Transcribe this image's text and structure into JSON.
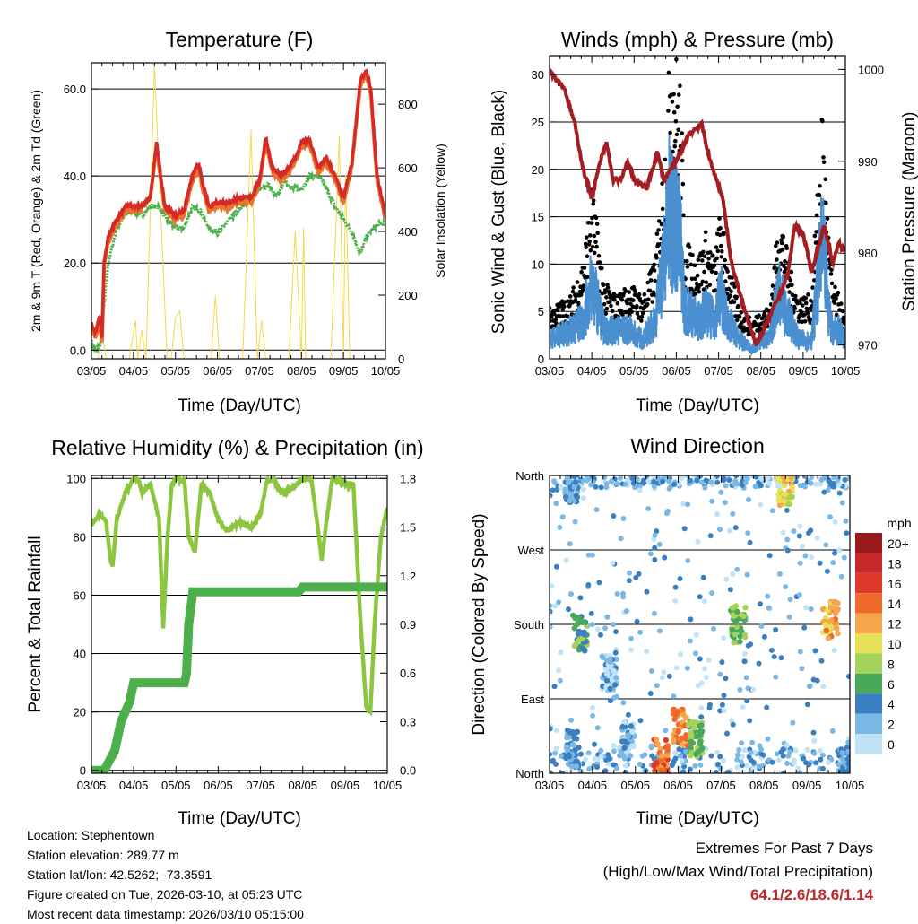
{
  "station_info": {
    "location": "Location: Stephentown",
    "elevation": "Station elevation: 289.77 m",
    "latlon": "Station lat/lon: 42.5262; -73.3591",
    "created": "Figure created on Tue, 2026-03-10, at 05:23 UTC",
    "recent": "Most recent data timestamp: 2026/03/10 05:15:00"
  },
  "extremes": {
    "title": "Extremes For Past 7 Days",
    "subtitle": "(High/Low/Max Wind/Total Precipitation)",
    "values": "64.1/2.6/18.6/1.14"
  },
  "colors": {
    "temp2m": "#e8732a",
    "temp9m": "#d62a27",
    "dewpoint": "#4daf4a",
    "solar": "#f5d84a",
    "wind": "#4a8fcf",
    "gust": "#000000",
    "pressure": "#a31e22",
    "rh": "#8cc63f",
    "precip": "#4daf4a"
  },
  "chart_data": [
    {
      "type": "line",
      "title": "Temperature (F)",
      "xlabel": "Time (Day/UTC)",
      "ylabel": "2m & 9m T (Red, Orange) & 2m Td (Green)",
      "y2label": "Solar Insolation (Yellow)",
      "x_ticks": [
        "03/05",
        "04/05",
        "05/05",
        "06/05",
        "07/05",
        "08/05",
        "09/05",
        "10/05"
      ],
      "xlim": [
        0,
        7
      ],
      "ylim": [
        -2,
        66
      ],
      "y_ticks": [
        "0.0",
        "20.0",
        "40.0",
        "60.0"
      ],
      "y_tick_values": [
        0,
        20,
        40,
        60
      ],
      "y2lim": [
        0,
        930
      ],
      "y2_ticks": [
        "0",
        "200",
        "400",
        "600",
        "800"
      ],
      "y2_tick_values": [
        0,
        200,
        400,
        600,
        800
      ],
      "grid": true,
      "series": [
        {
          "name": "9m T",
          "x": [
            0,
            0.1,
            0.2,
            0.25,
            0.3,
            0.4,
            0.6,
            0.8,
            1.0,
            1.2,
            1.4,
            1.55,
            1.65,
            1.75,
            2.0,
            2.2,
            2.4,
            2.55,
            2.65,
            2.8,
            3.0,
            3.3,
            3.5,
            3.8,
            4.0,
            4.15,
            4.3,
            4.5,
            4.7,
            4.9,
            5.0,
            5.2,
            5.4,
            5.6,
            5.8,
            6.0,
            6.2,
            6.4,
            6.55,
            6.65,
            6.8,
            7.0
          ],
          "y": [
            6,
            4,
            8,
            2,
            20,
            26,
            30,
            33,
            33,
            33,
            35,
            48,
            40,
            33,
            31,
            32,
            40,
            43,
            38,
            33,
            34,
            34,
            35,
            35,
            39,
            49,
            42,
            40,
            42,
            45,
            48,
            48,
            42,
            44,
            40,
            35,
            43,
            62,
            64,
            60,
            40,
            31
          ]
        },
        {
          "name": "2m T",
          "x": [
            0,
            0.1,
            0.2,
            0.25,
            0.3,
            0.4,
            0.6,
            0.8,
            1.0,
            1.2,
            1.4,
            1.55,
            1.65,
            1.75,
            2.0,
            2.2,
            2.4,
            2.55,
            2.65,
            2.8,
            3.0,
            3.3,
            3.5,
            3.8,
            4.0,
            4.15,
            4.3,
            4.5,
            4.7,
            4.9,
            5.0,
            5.2,
            5.4,
            5.6,
            5.8,
            6.0,
            6.2,
            6.4,
            6.55,
            6.65,
            6.8,
            7.0
          ],
          "y": [
            5,
            3,
            7,
            1,
            19,
            25,
            29,
            32,
            32,
            33,
            35,
            47,
            39,
            32,
            30,
            31,
            39,
            42,
            37,
            32,
            33,
            33,
            34,
            34,
            38,
            48,
            41,
            39,
            41,
            44,
            47,
            47,
            41,
            43,
            39,
            34,
            42,
            61,
            63,
            59,
            39,
            30
          ]
        },
        {
          "name": "2m Td",
          "x": [
            0,
            0.1,
            0.2,
            0.3,
            0.4,
            0.6,
            0.8,
            1.0,
            1.2,
            1.4,
            1.6,
            1.8,
            2.0,
            2.2,
            2.4,
            2.6,
            2.8,
            3.0,
            3.3,
            3.6,
            3.8,
            4.0,
            4.2,
            4.4,
            4.6,
            4.8,
            5.0,
            5.2,
            5.4,
            5.6,
            5.8,
            6.0,
            6.2,
            6.4,
            6.55,
            6.7,
            6.85,
            7.0
          ],
          "y": [
            2,
            0,
            1,
            10,
            20,
            28,
            31,
            32,
            31,
            33,
            33,
            30,
            28,
            28,
            33,
            32,
            28,
            27,
            30,
            33,
            35,
            37,
            38,
            35,
            39,
            37,
            37,
            40,
            40,
            37,
            33,
            30,
            27,
            22,
            26,
            28,
            29,
            29
          ]
        },
        {
          "name": "Solar Insolation",
          "axis": "y2",
          "x": [
            0,
            0.15,
            0.25,
            0.35,
            0.5,
            0.9,
            1.05,
            1.1,
            1.2,
            1.3,
            1.5,
            1.8,
            1.9,
            2.0,
            2.1,
            2.2,
            2.5,
            2.85,
            2.95,
            3.05,
            3.15,
            3.3,
            3.6,
            3.8,
            3.95,
            4.05,
            4.15,
            4.3,
            4.7,
            4.85,
            5.0,
            5.05,
            5.1,
            5.3,
            5.7,
            5.9,
            6.0,
            6.05,
            6.15,
            6.3,
            6.7,
            6.85,
            7.0
          ],
          "y": [
            0,
            0,
            80,
            0,
            0,
            0,
            120,
            0,
            90,
            0,
            920,
            0,
            0,
            130,
            150,
            0,
            0,
            0,
            200,
            0,
            0,
            0,
            0,
            720,
            0,
            120,
            0,
            0,
            0,
            400,
            0,
            410,
            0,
            0,
            0,
            700,
            0,
            580,
            0,
            0,
            0,
            0,
            0
          ]
        }
      ]
    },
    {
      "type": "scatter",
      "title": "Winds (mph) & Pressure (mb)",
      "xlabel": "Time (Day/UTC)",
      "ylabel": "Sonic Wind & Gust (Blue, Black)",
      "y2label": "Station Pressure (Maroon)",
      "x_ticks": [
        "03/05",
        "04/05",
        "05/05",
        "06/05",
        "07/05",
        "08/05",
        "09/05",
        "10/05"
      ],
      "xlim": [
        0,
        7
      ],
      "ylim": [
        0,
        32
      ],
      "y_ticks": [
        "0",
        "5",
        "10",
        "15",
        "20",
        "25",
        "30"
      ],
      "y_tick_values": [
        0,
        5,
        10,
        15,
        20,
        25,
        30
      ],
      "y2lim": [
        968.5,
        1001.5
      ],
      "y2_ticks": [
        "970",
        "980",
        "990",
        "1000"
      ],
      "y2_tick_values": [
        970,
        980,
        990,
        1000
      ],
      "grid": true,
      "series": [
        {
          "name": "Gust",
          "x": [
            0,
            0.5,
            0.8,
            1.0,
            1.3,
            1.6,
            1.9,
            2.2,
            2.5,
            2.75,
            2.85,
            3.0,
            3.1,
            3.2,
            3.35,
            3.5,
            3.7,
            3.9,
            4.05,
            4.2,
            4.5,
            4.8,
            5.0,
            5.2,
            5.45,
            5.55,
            5.7,
            5.9,
            6.2,
            6.45,
            6.5,
            6.55,
            6.6,
            6.7,
            6.85,
            7.0
          ],
          "y": [
            4,
            5,
            8,
            14,
            6,
            5,
            6,
            5,
            8,
            18,
            27,
            24,
            22,
            9,
            9,
            8,
            10,
            8,
            12,
            8,
            4,
            3,
            4,
            4,
            12,
            10,
            7,
            5,
            5,
            20,
            17,
            14,
            10,
            6,
            5,
            3
          ]
        },
        {
          "name": "Wind",
          "x": [
            0,
            0.5,
            0.8,
            1.0,
            1.3,
            1.6,
            1.9,
            2.2,
            2.5,
            2.75,
            2.85,
            3.0,
            3.1,
            3.2,
            3.35,
            3.5,
            3.7,
            3.9,
            4.05,
            4.2,
            4.5,
            4.8,
            5.0,
            5.2,
            5.45,
            5.55,
            5.7,
            5.9,
            6.2,
            6.45,
            6.5,
            6.55,
            6.6,
            6.7,
            6.85,
            7.0
          ],
          "y": [
            2,
            3,
            4,
            8,
            3,
            3,
            3,
            2,
            4,
            12,
            16,
            14,
            12,
            5,
            5,
            4,
            5,
            4,
            7,
            4,
            2,
            1,
            2,
            2,
            8,
            5,
            4,
            2,
            2,
            12,
            10,
            8,
            5,
            3,
            3,
            2
          ]
        },
        {
          "name": "Pressure",
          "axis": "y2",
          "x": [
            0,
            0.15,
            0.35,
            0.6,
            0.8,
            1.0,
            1.2,
            1.35,
            1.5,
            1.7,
            1.85,
            2.0,
            2.3,
            2.55,
            2.7,
            2.85,
            3.0,
            3.1,
            3.3,
            3.6,
            3.8,
            4.1,
            4.3,
            4.6,
            4.9,
            5.1,
            5.3,
            5.5,
            5.65,
            5.8,
            6.0,
            6.2,
            6.5,
            6.7,
            6.85,
            7.0
          ],
          "y": [
            1000,
            999,
            998,
            994,
            989,
            986,
            990,
            992,
            988,
            988,
            990,
            988,
            987,
            991,
            988,
            989,
            990,
            991,
            993,
            994,
            990,
            986,
            979,
            974,
            970,
            972,
            974,
            976,
            978,
            983,
            982,
            978,
            983,
            979,
            981,
            980
          ]
        }
      ]
    },
    {
      "type": "line",
      "title": "Relative Humidity (%) & Precipitation (in)",
      "xlabel": "Time (Day/UTC)",
      "ylabel": "Percent & Total Rainfall",
      "x_ticks": [
        "03/05",
        "04/05",
        "05/05",
        "06/05",
        "07/05",
        "08/05",
        "09/05",
        "10/05"
      ],
      "xlim": [
        0,
        7
      ],
      "ylim": [
        -1,
        101
      ],
      "y_ticks": [
        "0",
        "20",
        "40",
        "60",
        "80",
        "100"
      ],
      "y_tick_values": [
        0,
        20,
        40,
        60,
        80,
        100
      ],
      "y2lim": [
        -0.018,
        1.818
      ],
      "y2_ticks": [
        "0.0",
        "0.3",
        "0.6",
        "0.9",
        "1.2",
        "1.5",
        "1.8"
      ],
      "y2_tick_values": [
        0,
        0.3,
        0.6,
        0.9,
        1.2,
        1.5,
        1.8
      ],
      "grid": true,
      "series": [
        {
          "name": "RH",
          "x": [
            0,
            0.1,
            0.2,
            0.35,
            0.45,
            0.5,
            0.6,
            0.8,
            1.0,
            1.1,
            1.2,
            1.4,
            1.6,
            1.7,
            1.8,
            1.9,
            2.0,
            2.2,
            2.3,
            2.45,
            2.6,
            2.8,
            3.0,
            3.2,
            3.5,
            3.8,
            4.0,
            4.15,
            4.3,
            4.5,
            4.8,
            5.0,
            5.2,
            5.35,
            5.45,
            5.55,
            5.7,
            6.0,
            6.2,
            6.35,
            6.5,
            6.6,
            6.7,
            6.85,
            7.0
          ],
          "y": [
            84,
            86,
            88,
            85,
            72,
            70,
            86,
            95,
            100,
            100,
            95,
            98,
            86,
            49,
            80,
            98,
            100,
            99,
            80,
            75,
            98,
            95,
            86,
            82,
            85,
            83,
            88,
            99,
            100,
            95,
            97,
            100,
            100,
            84,
            72,
            84,
            100,
            98,
            98,
            55,
            22,
            20,
            50,
            80,
            90
          ]
        },
        {
          "name": "Total Precipitation",
          "axis": "y2",
          "x": [
            0,
            0.3,
            0.55,
            0.7,
            0.9,
            1.0,
            1.5,
            2.0,
            2.2,
            2.25,
            2.3,
            2.4,
            3.0,
            4.0,
            4.9,
            5.0,
            6.0,
            7.0
          ],
          "y": [
            0,
            0,
            0.12,
            0.3,
            0.42,
            0.54,
            0.54,
            0.54,
            0.54,
            0.6,
            0.9,
            1.1,
            1.1,
            1.1,
            1.1,
            1.13,
            1.13,
            1.13
          ]
        }
      ]
    },
    {
      "type": "scatter",
      "title": "Wind Direction",
      "xlabel": "Time (Day/UTC)",
      "ylabel": "Direction (Colored By Speed)",
      "x_ticks": [
        "03/05",
        "04/05",
        "05/05",
        "06/05",
        "07/05",
        "08/05",
        "09/05",
        "10/05"
      ],
      "xlim": [
        0,
        7
      ],
      "ylim": [
        0,
        360
      ],
      "y_ticks": [
        "North",
        "East",
        "South",
        "West",
        "North"
      ],
      "y_tick_values": [
        0,
        90,
        180,
        270,
        360
      ],
      "grid": true,
      "colorbar": {
        "title": "mph",
        "labels": [
          "20+",
          "18",
          "16",
          "14",
          "12",
          "10",
          "8",
          "6",
          "4",
          "2",
          "0"
        ],
        "colors": [
          "#99191c",
          "#c8282a",
          "#de3a2b",
          "#ef6a2a",
          "#f7a54a",
          "#e7e255",
          "#a5d25a",
          "#4aa85a",
          "#3a7fc0",
          "#7ab9e6",
          "#c2e3f6"
        ]
      },
      "clusters": [
        {
          "x": 0.5,
          "dir": 350,
          "speed": 3
        },
        {
          "x": 0.55,
          "dir": 30,
          "speed": 3
        },
        {
          "x": 0.7,
          "dir": 170,
          "speed": 6
        },
        {
          "x": 1.4,
          "dir": 120,
          "speed": 2
        },
        {
          "x": 1.8,
          "dir": 40,
          "speed": 2
        },
        {
          "x": 2.6,
          "dir": 20,
          "speed": 14
        },
        {
          "x": 3.05,
          "dir": 55,
          "speed": 13
        },
        {
          "x": 3.4,
          "dir": 40,
          "speed": 7
        },
        {
          "x": 4.4,
          "dir": 180,
          "speed": 7
        },
        {
          "x": 5.5,
          "dir": 345,
          "speed": 10
        },
        {
          "x": 6.55,
          "dir": 185,
          "speed": 12
        },
        {
          "x": 6.9,
          "dir": 10,
          "speed": 3
        }
      ]
    }
  ]
}
